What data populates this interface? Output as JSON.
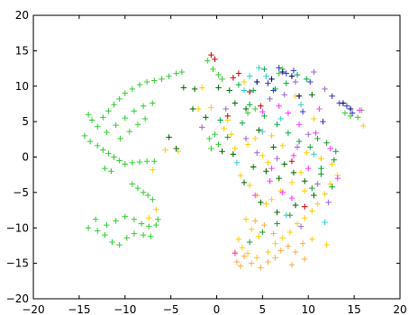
{
  "chart_data": {
    "type": "scatter",
    "title": "",
    "xlabel": "",
    "ylabel": "",
    "xlim": [
      -20,
      20
    ],
    "ylim": [
      -20,
      20
    ],
    "x_ticks": [
      -20,
      -15,
      -10,
      -5,
      0,
      5,
      10,
      15,
      20
    ],
    "y_ticks": [
      -20,
      -15,
      -10,
      -5,
      0,
      5,
      10,
      15,
      20
    ],
    "x_tick_labels": [
      "−20",
      "−15",
      "−10",
      "−5",
      "0",
      "5",
      "10",
      "15",
      "20"
    ],
    "y_tick_labels": [
      "−20",
      "−15",
      "−10",
      "−5",
      "0",
      "5",
      "10",
      "15",
      "20"
    ],
    "grid": false,
    "legend": "none",
    "marker": "+",
    "series": [
      {
        "color": "#33cc33",
        "points": [
          [
            -14,
            6
          ],
          [
            -13.6,
            5.2
          ],
          [
            -13,
            4.3
          ],
          [
            -12.4,
            5.6
          ],
          [
            -11.8,
            6.5
          ],
          [
            -11.2,
            7.4
          ],
          [
            -10.6,
            8.2
          ],
          [
            -10,
            9
          ],
          [
            -9.2,
            9.6
          ],
          [
            -8.4,
            10.2
          ],
          [
            -7.6,
            10.6
          ],
          [
            -6.8,
            10.8
          ],
          [
            -6,
            11
          ],
          [
            -5.2,
            11.4
          ],
          [
            -4.4,
            11.8
          ],
          [
            -3.8,
            12
          ],
          [
            -14.4,
            3
          ],
          [
            -13.8,
            2.2
          ],
          [
            -13,
            1.6
          ],
          [
            -12.4,
            1
          ],
          [
            -11.8,
            0.5
          ],
          [
            -11.2,
            0
          ],
          [
            -10.6,
            -0.5
          ],
          [
            -10,
            -1
          ],
          [
            -9.2,
            -0.8
          ],
          [
            -8.4,
            -0.7
          ],
          [
            -7.6,
            -0.6
          ],
          [
            -6.8,
            -0.6
          ],
          [
            -12,
            3.5
          ],
          [
            -11,
            4.5
          ],
          [
            -10,
            5.5
          ],
          [
            -9,
            6.5
          ],
          [
            -8,
            7.2
          ],
          [
            -7,
            7.6
          ],
          [
            -10.5,
            2.6
          ],
          [
            -9.5,
            3.6
          ],
          [
            -8.6,
            4.6
          ],
          [
            -7.8,
            5.4
          ],
          [
            -12.2,
            -1.6
          ],
          [
            -11.5,
            -2
          ],
          [
            -9.2,
            -3.8
          ],
          [
            -8.6,
            -4.4
          ],
          [
            -8,
            -5
          ],
          [
            -7.5,
            -5.4
          ],
          [
            -7,
            -6
          ],
          [
            -14,
            -10
          ],
          [
            -13,
            -10.4
          ],
          [
            -12,
            -9.6
          ],
          [
            -11,
            -9
          ],
          [
            -10,
            -8.4
          ],
          [
            -9,
            -8.8
          ],
          [
            -8.2,
            -9.4
          ],
          [
            -7.4,
            -9.8
          ],
          [
            -6.6,
            -9.6
          ],
          [
            -13.2,
            -8.8
          ],
          [
            -12.2,
            -11
          ],
          [
            -11.4,
            -12
          ],
          [
            -10.6,
            -12.4
          ],
          [
            -9.8,
            -11.4
          ],
          [
            -9,
            -10.8
          ],
          [
            -8,
            -11
          ],
          [
            -7.2,
            -11.2
          ],
          [
            -6.4,
            -8.8
          ],
          [
            -1,
            13.6
          ],
          [
            -0.4,
            12.4
          ],
          [
            0.6,
            11
          ],
          [
            0.2,
            11.6
          ],
          [
            15.4,
            5.6
          ],
          [
            14.6,
            5.8
          ],
          [
            14,
            6.2
          ],
          [
            15.8,
            6.6
          ],
          [
            -0.8,
            2.6
          ],
          [
            -0.2,
            3.2
          ],
          [
            -0.6,
            1.2
          ],
          [
            0.2,
            1.8
          ],
          [
            4.2,
            6.8
          ],
          [
            3.4,
            6.2
          ],
          [
            6.8,
            11.8
          ],
          [
            7.2,
            12.4
          ]
        ]
      },
      {
        "color": "#ffcc00",
        "points": [
          [
            -1.6,
            9.8
          ],
          [
            -2,
            6.8
          ],
          [
            -0.6,
            7
          ],
          [
            0.8,
            4
          ],
          [
            1.2,
            5.2
          ],
          [
            1.6,
            3.2
          ],
          [
            2,
            1.2
          ],
          [
            3.4,
            1.8
          ],
          [
            4.2,
            2.6
          ],
          [
            5,
            0.2
          ],
          [
            5.6,
            -0.8
          ],
          [
            2.6,
            -2.6
          ],
          [
            3.6,
            -4
          ],
          [
            4.4,
            -5.4
          ],
          [
            5.4,
            -6.6
          ],
          [
            3.2,
            -8.8
          ],
          [
            3.8,
            -10.2
          ],
          [
            4.6,
            -11.2
          ],
          [
            2.4,
            -11.6
          ],
          [
            2.8,
            -12.8
          ],
          [
            3.4,
            -13.6
          ],
          [
            4.4,
            -14.2
          ],
          [
            5.6,
            -13.4
          ],
          [
            6.4,
            -12.2
          ],
          [
            7.2,
            -11.4
          ],
          [
            8,
            -10.6
          ],
          [
            8.8,
            -9.4
          ],
          [
            9.6,
            -8.6
          ],
          [
            10.4,
            -7.6
          ],
          [
            11,
            -6.6
          ],
          [
            11.8,
            -5.2
          ],
          [
            12.4,
            -3.8
          ],
          [
            13.2,
            -2.6
          ],
          [
            12.6,
            -1
          ],
          [
            11.4,
            -0.2
          ],
          [
            9.8,
            0.6
          ],
          [
            7.2,
            1.6
          ],
          [
            6,
            3
          ],
          [
            9.2,
            -2.2
          ],
          [
            8.2,
            -3.6
          ],
          [
            7,
            -4.8
          ],
          [
            6,
            -6
          ],
          [
            9.6,
            -4.8
          ],
          [
            10.4,
            -11.6
          ],
          [
            12,
            -12.4
          ],
          [
            -4.2,
            0.8
          ],
          [
            -5.6,
            1
          ],
          [
            -7,
            -1.8
          ],
          [
            -6.6,
            -7.4
          ],
          [
            -7.4,
            -8.6
          ],
          [
            16,
            4.4
          ],
          [
            10.6,
            5.4
          ],
          [
            8.6,
            8.6
          ],
          [
            3,
            10.6
          ]
        ]
      },
      {
        "color": "#ffaa44",
        "points": [
          [
            2.2,
            -14.8
          ],
          [
            2.6,
            -15.4
          ],
          [
            3,
            -14
          ],
          [
            3.8,
            -15
          ],
          [
            4.8,
            -15.6
          ],
          [
            5.6,
            -14.8
          ],
          [
            6.4,
            -14.2
          ],
          [
            7,
            -13.2
          ],
          [
            7.8,
            -12.6
          ],
          [
            8.6,
            -13.4
          ],
          [
            9.4,
            -12.2
          ],
          [
            6.2,
            -10.8
          ],
          [
            5.2,
            -9.6
          ],
          [
            4.2,
            -9
          ],
          [
            2,
            -13.4
          ],
          [
            9.6,
            -14.4
          ],
          [
            8.2,
            -15.2
          ]
        ]
      },
      {
        "color": "#00aa44",
        "points": [
          [
            2.4,
            10.2
          ],
          [
            4,
            9.4
          ],
          [
            5.2,
            12.4
          ],
          [
            6.4,
            9.6
          ],
          [
            7.6,
            10.4
          ],
          [
            8.8,
            11.6
          ],
          [
            9.8,
            11
          ],
          [
            3.6,
            7.4
          ],
          [
            5.2,
            5.8
          ],
          [
            6.6,
            4.6
          ],
          [
            7.8,
            3.4
          ],
          [
            9,
            2.2
          ],
          [
            10.2,
            1.4
          ],
          [
            11.4,
            -1.6
          ],
          [
            12.6,
            -4.2
          ],
          [
            1.2,
            2.8
          ],
          [
            0.4,
            5.2
          ],
          [
            2.8,
            4.8
          ]
        ]
      },
      {
        "color": "#006600",
        "points": [
          [
            -2.4,
            9.6
          ],
          [
            -3.6,
            9.8
          ],
          [
            0.2,
            9.8
          ],
          [
            1.4,
            9.4
          ],
          [
            2,
            7.6
          ],
          [
            3.2,
            6.8
          ],
          [
            4.6,
            3.8
          ],
          [
            6.2,
            1.4
          ],
          [
            7.4,
            -1
          ],
          [
            8.4,
            -2.2
          ],
          [
            9.6,
            -3.4
          ],
          [
            6.8,
            -3
          ],
          [
            5.4,
            -2
          ],
          [
            4,
            -1.4
          ],
          [
            3,
            -3.6
          ],
          [
            4.8,
            -6.4
          ],
          [
            6.6,
            -7.8
          ],
          [
            8.6,
            -6.8
          ],
          [
            10.6,
            -5.4
          ],
          [
            1.8,
            0.4
          ],
          [
            0.6,
            0.8
          ],
          [
            -1.2,
            5.6
          ],
          [
            -2.6,
            6.8
          ],
          [
            -4.4,
            1.2
          ],
          [
            -5.2,
            2.8
          ],
          [
            10.4,
            8.8
          ]
        ]
      },
      {
        "color": "#ff33ff",
        "points": [
          [
            5,
            6.4
          ],
          [
            7.8,
            6.2
          ],
          [
            9,
            4.6
          ],
          [
            10.8,
            3.4
          ],
          [
            8.4,
            0.2
          ],
          [
            6,
            -1.6
          ],
          [
            7.2,
            -5
          ],
          [
            8.2,
            -5.8
          ],
          [
            4.2,
            -5.4
          ],
          [
            5.8,
            -3.4
          ],
          [
            10,
            -1.6
          ],
          [
            12.4,
            1.2
          ],
          [
            13.2,
            -3
          ],
          [
            2,
            -13.6
          ],
          [
            6.8,
            7.2
          ],
          [
            11.2,
            6.8
          ],
          [
            15.6,
            6.6
          ]
        ]
      },
      {
        "color": "#cc0000",
        "points": [
          [
            -0.6,
            14.4
          ],
          [
            -0.2,
            13.8
          ],
          [
            2.4,
            11.8
          ],
          [
            1.8,
            11.2
          ],
          [
            3.6,
            9.2
          ],
          [
            4.8,
            7.2
          ],
          [
            1.2,
            5.8
          ],
          [
            8.2,
            -0.6
          ],
          [
            9.6,
            -7
          ]
        ]
      },
      {
        "color": "#3333cc",
        "points": [
          [
            6.8,
            12.6
          ],
          [
            7.6,
            11.8
          ],
          [
            8.4,
            12.2
          ],
          [
            5.6,
            10.4
          ],
          [
            6.2,
            9.4
          ],
          [
            10.2,
            10.6
          ],
          [
            12.6,
            8.6
          ],
          [
            13.4,
            7.6
          ],
          [
            14.2,
            7.2
          ],
          [
            14.8,
            6.2
          ],
          [
            9.4,
            6.4
          ],
          [
            11.6,
            5
          ]
        ]
      },
      {
        "color": "#000066",
        "points": [
          [
            7.2,
            12
          ],
          [
            6,
            11
          ],
          [
            8.2,
            11.4
          ],
          [
            4.4,
            10.6
          ],
          [
            13.8,
            7.6
          ],
          [
            14.6,
            6.8
          ],
          [
            9,
            8.6
          ]
        ]
      },
      {
        "color": "#33cccc",
        "points": [
          [
            5.4,
            11.4
          ],
          [
            4.6,
            12.6
          ],
          [
            3.6,
            11.4
          ],
          [
            3,
            9.4
          ],
          [
            5,
            3.6
          ],
          [
            7,
            5.4
          ],
          [
            9.2,
            7.4
          ],
          [
            2.2,
            -0.8
          ],
          [
            10.6,
            0.4
          ],
          [
            7.6,
            -8.2
          ],
          [
            11.8,
            -9.2
          ]
        ]
      },
      {
        "color": "#9966cc",
        "points": [
          [
            5.8,
            8.2
          ],
          [
            7.4,
            8.8
          ],
          [
            8.6,
            10.6
          ],
          [
            10.6,
            12
          ],
          [
            11.8,
            9.6
          ],
          [
            3.2,
            2.6
          ],
          [
            4.4,
            0.6
          ],
          [
            6.6,
            -0.2
          ],
          [
            8.8,
            1.4
          ],
          [
            10,
            3.2
          ],
          [
            11,
            -3.8
          ],
          [
            12.2,
            -6.4
          ],
          [
            9.2,
            -9.8
          ],
          [
            1,
            6.8
          ],
          [
            -1.6,
            4.2
          ]
        ]
      },
      {
        "color": "#1a9933",
        "points": [
          [
            11,
            2.6
          ],
          [
            12,
            2
          ],
          [
            13,
            0.8
          ],
          [
            12.8,
            -0.4
          ],
          [
            11.4,
            -2.4
          ],
          [
            10.4,
            -4.4
          ],
          [
            8,
            -8.2
          ],
          [
            6.6,
            -9.4
          ],
          [
            5,
            -10.6
          ],
          [
            3.6,
            -12
          ]
        ]
      }
    ]
  }
}
